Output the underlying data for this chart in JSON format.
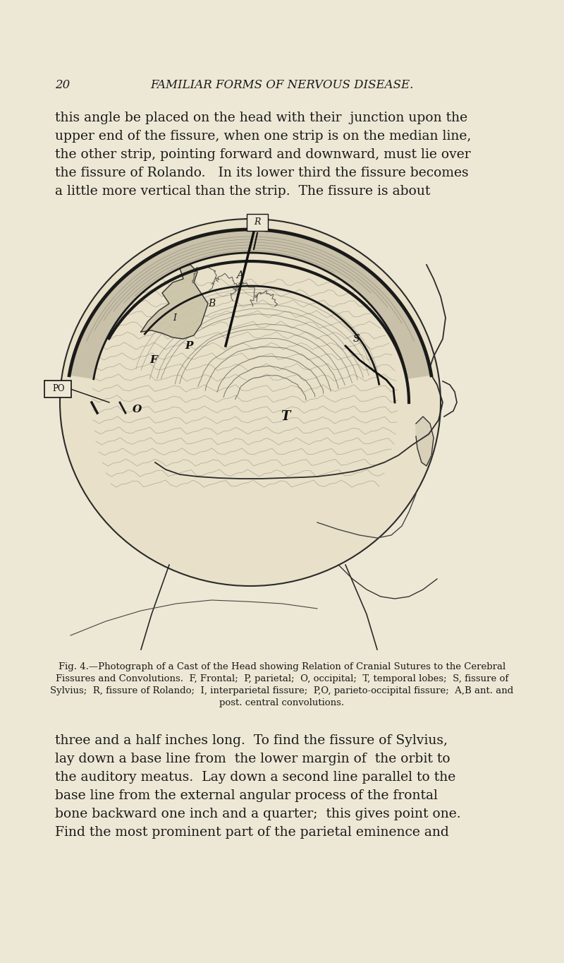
{
  "bg_color": "#ede8d5",
  "page_number": "20",
  "header_title": "FAMILIAR FORMS OF NERVOUS DISEASE.",
  "header_fontsize": 12,
  "page_num_fontsize": 12,
  "body_text_color": "#1a1a1a",
  "body_fontsize": 13.5,
  "caption_fontsize": 9.5,
  "top_paragraph_lines": [
    "this angle be placed on the head with their  junction upon the",
    "upper end of the fissure, when one strip is on the median line,",
    "the other strip, pointing forward and downward, must lie over",
    "the fissure of Rolando.   In its lower third the fissure becomes",
    "a little more vertical than the strip.  The fissure is about"
  ],
  "caption_lines": [
    "Fig. 4.—Photograph of a Cast of the Head showing Relation of Cranial Sutures to the Cerebral",
    "Fissures and Convolutions.  F, Frontal;  P, parietal;  O, occipital;  T, temporal lobes;  S, fissure of",
    "Sylvius;  R, fissure of Rolando;  I, interparietal fissure;  P,O, parieto-occipital fissure;  A,B ant. and",
    "post. central convolutions."
  ],
  "bottom_paragraph_lines": [
    "three and a half inches long.  To find the fissure of Sylvius,",
    "lay down a base line from  the lower margin of  the orbit to",
    "the auditory meatus.  Lay down a second line parallel to the",
    "base line from the external angular process of the frontal",
    "bone backward one inch and a quarter;  this gives point one.",
    "Find the most prominent part of the parietal eminence and"
  ]
}
